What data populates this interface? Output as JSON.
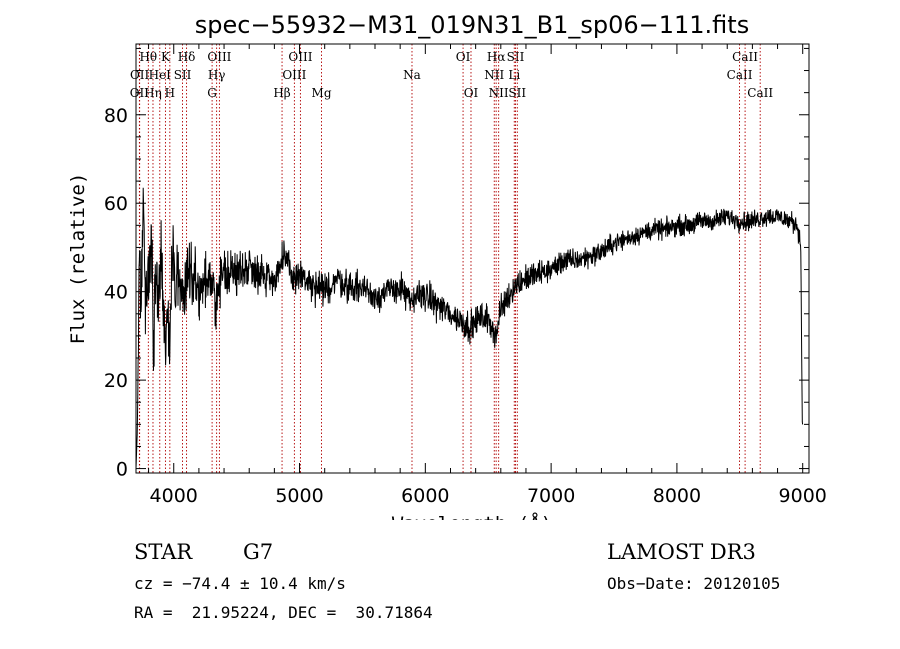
{
  "chart_data": {
    "type": "line",
    "title": "spec−55932−M31_019N31_B1_sp06−111.fits",
    "xlabel": "Wavelength (Å)",
    "ylabel": "Flux (relative)",
    "xlim": [
      3700,
      9050
    ],
    "ylim": [
      -1,
      96
    ],
    "xticks": [
      4000,
      5000,
      6000,
      7000,
      8000,
      9000
    ],
    "yticks": [
      0,
      20,
      40,
      60,
      80
    ],
    "anchors": [
      [
        3700,
        0
      ],
      [
        3710,
        8
      ],
      [
        3720,
        28
      ],
      [
        3730,
        55
      ],
      [
        3740,
        30
      ],
      [
        3750,
        50
      ],
      [
        3760,
        62
      ],
      [
        3775,
        35
      ],
      [
        3790,
        48
      ],
      [
        3805,
        40
      ],
      [
        3820,
        55
      ],
      [
        3840,
        30
      ],
      [
        3860,
        45
      ],
      [
        3880,
        38
      ],
      [
        3900,
        50
      ],
      [
        3920,
        36
      ],
      [
        3935,
        28
      ],
      [
        3950,
        35
      ],
      [
        3968,
        27
      ],
      [
        3980,
        40
      ],
      [
        3995,
        55
      ],
      [
        4010,
        35
      ],
      [
        4030,
        47
      ],
      [
        4060,
        38
      ],
      [
        4100,
        44
      ],
      [
        4150,
        45
      ],
      [
        4200,
        40
      ],
      [
        4250,
        43
      ],
      [
        4300,
        41
      ],
      [
        4340,
        38
      ],
      [
        4400,
        45
      ],
      [
        4500,
        44
      ],
      [
        4600,
        46
      ],
      [
        4700,
        44
      ],
      [
        4800,
        43
      ],
      [
        4850,
        46
      ],
      [
        4900,
        47
      ],
      [
        4950,
        43
      ],
      [
        5000,
        44
      ],
      [
        5100,
        41
      ],
      [
        5200,
        40
      ],
      [
        5300,
        43
      ],
      [
        5400,
        41
      ],
      [
        5500,
        41
      ],
      [
        5600,
        39
      ],
      [
        5700,
        40
      ],
      [
        5800,
        41
      ],
      [
        5893,
        37
      ],
      [
        5950,
        40
      ],
      [
        6050,
        38
      ],
      [
        6150,
        36
      ],
      [
        6250,
        34
      ],
      [
        6300,
        33
      ],
      [
        6360,
        32
      ],
      [
        6420,
        34
      ],
      [
        6480,
        34
      ],
      [
        6520,
        33
      ],
      [
        6563,
        30
      ],
      [
        6600,
        36
      ],
      [
        6700,
        41
      ],
      [
        6800,
        43
      ],
      [
        6900,
        44
      ],
      [
        7000,
        45
      ],
      [
        7100,
        47
      ],
      [
        7200,
        47
      ],
      [
        7300,
        48
      ],
      [
        7400,
        49
      ],
      [
        7500,
        51
      ],
      [
        7600,
        52
      ],
      [
        7700,
        53
      ],
      [
        7800,
        54
      ],
      [
        7900,
        54
      ],
      [
        8000,
        55
      ],
      [
        8100,
        55
      ],
      [
        8200,
        56
      ],
      [
        8300,
        56
      ],
      [
        8400,
        57
      ],
      [
        8500,
        56
      ],
      [
        8600,
        56
      ],
      [
        8700,
        57
      ],
      [
        8800,
        57
      ],
      [
        8900,
        56
      ],
      [
        8960,
        55
      ],
      [
        8985,
        50
      ],
      [
        8992,
        25
      ],
      [
        8997,
        10
      ],
      [
        9000,
        10
      ]
    ],
    "noise": [
      [
        3700,
        5
      ],
      [
        3800,
        9
      ],
      [
        4000,
        7
      ],
      [
        4300,
        5
      ],
      [
        4600,
        4
      ],
      [
        5000,
        3.5
      ],
      [
        5600,
        3
      ],
      [
        6000,
        3
      ],
      [
        6600,
        3
      ],
      [
        7000,
        2.5
      ],
      [
        7600,
        2
      ],
      [
        8200,
        2
      ],
      [
        8800,
        2
      ],
      [
        9000,
        2
      ]
    ],
    "spectral_lines": [
      {
        "name": "OII",
        "wave": 3727,
        "row": 3
      },
      {
        "name": "OII",
        "wave": 3729,
        "row": 2
      },
      {
        "name": "Hθ",
        "wave": 3798,
        "row": 1
      },
      {
        "name": "Hη",
        "wave": 3835,
        "row": 3
      },
      {
        "name": "HeI",
        "wave": 3889,
        "row": 2
      },
      {
        "name": "K",
        "wave": 3934,
        "row": 1
      },
      {
        "name": "H",
        "wave": 3969,
        "row": 3
      },
      {
        "name": "SII",
        "wave": 4070,
        "row": 2
      },
      {
        "name": "Hδ",
        "wave": 4102,
        "row": 1
      },
      {
        "name": "G",
        "wave": 4305,
        "row": 3
      },
      {
        "name": "Hγ",
        "wave": 4341,
        "row": 2
      },
      {
        "name": "OIII",
        "wave": 4363,
        "row": 1
      },
      {
        "name": "Hβ",
        "wave": 4861,
        "row": 3
      },
      {
        "name": "OIII",
        "wave": 4959,
        "row": 2
      },
      {
        "name": "OIII",
        "wave": 5007,
        "row": 1
      },
      {
        "name": "Mg",
        "wave": 5175,
        "row": 3
      },
      {
        "name": "Na",
        "wave": 5894,
        "row": 2
      },
      {
        "name": "OI",
        "wave": 6300,
        "row": 1
      },
      {
        "name": "OI",
        "wave": 6363,
        "row": 3
      },
      {
        "name": "NII",
        "wave": 6548,
        "row": 2
      },
      {
        "name": "Hα",
        "wave": 6563,
        "row": 1
      },
      {
        "name": "NII",
        "wave": 6583,
        "row": 3
      },
      {
        "name": "Li",
        "wave": 6707,
        "row": 2
      },
      {
        "name": "SII",
        "wave": 6717,
        "row": 1
      },
      {
        "name": "SII",
        "wave": 6731,
        "row": 3
      },
      {
        "name": "CaII",
        "wave": 8498,
        "row": 2
      },
      {
        "name": "CaII",
        "wave": 8542,
        "row": 1
      },
      {
        "name": "CaII",
        "wave": 8662,
        "row": 3
      }
    ]
  },
  "info": {
    "class_label": "STAR",
    "subclass": "G7",
    "survey": "LAMOST DR3",
    "redshift_line": "cz = −74.4 ± 10.4 km/s",
    "obs_date_line": "Obs−Date: 20120105",
    "coords_line": "RA =  21.95224, DEC =  30.71864"
  }
}
